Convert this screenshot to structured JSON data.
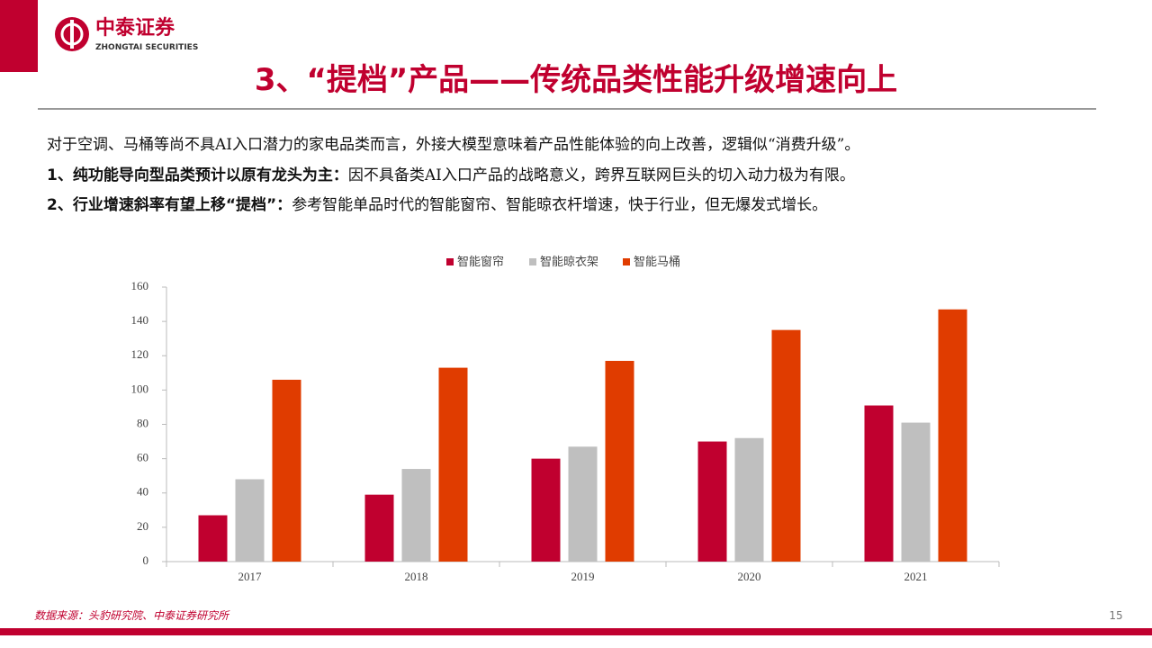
{
  "header": {
    "logo_cn": "中泰证券",
    "logo_en": "ZHONGTAI SECURITIES",
    "title": "3、“提档”产品——传统品类性能升级增速向上"
  },
  "body": [
    {
      "text": "对于空调、马桶等尚不具AI入口潜力的家电品类而言，外接大模型意味着产品性能体验的向上改善，逻辑似“消费升级”。"
    },
    {
      "bold": "1、纯功能导向型品类预计以原有龙头为主：",
      "text": "因不具备类AI入口产品的战略意义，跨界互联网巨头的切入动力极为有限。"
    },
    {
      "bold": "2、行业增速斜率有望上移“提档”：",
      "text": "参考智能单品时代的智能窗帘、智能晾衣杆增速，快于行业，但无爆发式增长。"
    }
  ],
  "chart_data": {
    "type": "bar",
    "categories": [
      "2017",
      "2018",
      "2019",
      "2020",
      "2021"
    ],
    "series": [
      {
        "name": "智能窗帘",
        "color": "#c0002f",
        "values": [
          27,
          39,
          60,
          70,
          91
        ]
      },
      {
        "name": "智能晾衣架",
        "color": "#bfbfbf",
        "values": [
          48,
          54,
          67,
          72,
          81
        ]
      },
      {
        "name": "智能马桶",
        "color": "#e03c00",
        "values": [
          106,
          113,
          117,
          135,
          147
        ]
      }
    ],
    "ylim": [
      0,
      160
    ],
    "yticks": [
      0,
      20,
      40,
      60,
      80,
      100,
      120,
      140,
      160
    ],
    "grid": false,
    "legend": "top"
  },
  "footer": {
    "source": "数据来源：头豹研究院、中泰证券研究所",
    "page": "15"
  }
}
